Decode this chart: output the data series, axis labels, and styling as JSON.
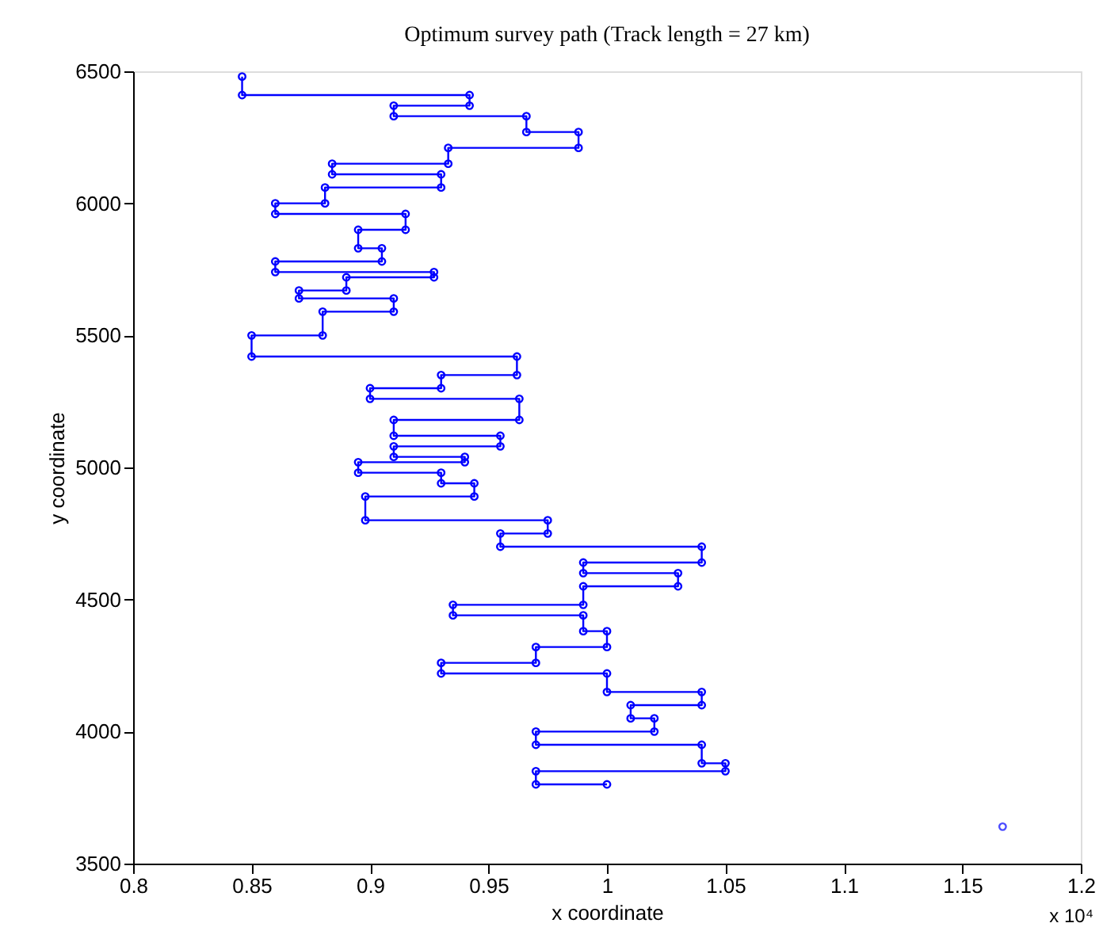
{
  "chart_data": {
    "type": "line",
    "title": "Optimum survey path (Track length = 27 km)",
    "xlabel": "x coordinate",
    "ylabel": "y coordinate",
    "annotations": [
      "x 10⁴"
    ],
    "xlim": [
      0.8,
      1.2
    ],
    "xticks": [
      0.8,
      0.85,
      0.9,
      0.95,
      1,
      1.05,
      1.1,
      1.15,
      1.2
    ],
    "ylim": [
      3500,
      6500
    ],
    "yticks": [
      3500,
      4000,
      4500,
      5000,
      5500,
      6000,
      6500
    ],
    "grid": false,
    "marker": "circle",
    "line_style": "solid",
    "series": [
      {
        "color": "#0000ff",
        "x": [
          0.846,
          0.846,
          0.942,
          0.942,
          0.91,
          0.91,
          0.966,
          0.966,
          0.988,
          0.988,
          0.933,
          0.933,
          0.884,
          0.884,
          0.93,
          0.93,
          0.881,
          0.881,
          0.86,
          0.86,
          0.915,
          0.915,
          0.895,
          0.895,
          0.905,
          0.905,
          0.86,
          0.86,
          0.927,
          0.927,
          0.89,
          0.89,
          0.87,
          0.87,
          0.91,
          0.91,
          0.88,
          0.88,
          0.85,
          0.85,
          0.962,
          0.962,
          0.93,
          0.93,
          0.9,
          0.9,
          0.963,
          0.963,
          0.91,
          0.91,
          0.955,
          0.955,
          0.91,
          0.91,
          0.94,
          0.94,
          0.895,
          0.895,
          0.93,
          0.93,
          0.944,
          0.944,
          0.898,
          0.898,
          0.975,
          0.975,
          0.955,
          0.955,
          1.04,
          1.04,
          0.99,
          0.99,
          1.03,
          1.03,
          0.99,
          0.99,
          0.935,
          0.935,
          0.99,
          0.99,
          1.0,
          1.0,
          0.97,
          0.97,
          0.93,
          0.93,
          1.0,
          1.0,
          1.04,
          1.04,
          1.01,
          1.01,
          1.02,
          1.02,
          0.97,
          0.97,
          1.04,
          1.04,
          1.05,
          1.05,
          0.97,
          0.97,
          1.0
        ],
        "values": [
          6480,
          6410,
          6410,
          6370,
          6370,
          6330,
          6330,
          6270,
          6270,
          6210,
          6210,
          6150,
          6150,
          6110,
          6110,
          6060,
          6060,
          6000,
          6000,
          5960,
          5960,
          5900,
          5900,
          5830,
          5830,
          5780,
          5780,
          5740,
          5740,
          5720,
          5720,
          5670,
          5670,
          5640,
          5640,
          5590,
          5590,
          5500,
          5500,
          5420,
          5420,
          5350,
          5350,
          5300,
          5300,
          5260,
          5260,
          5180,
          5180,
          5120,
          5120,
          5080,
          5080,
          5040,
          5040,
          5020,
          5020,
          4980,
          4980,
          4940,
          4940,
          4890,
          4890,
          4800,
          4800,
          4750,
          4750,
          4700,
          4700,
          4640,
          4640,
          4600,
          4600,
          4550,
          4550,
          4480,
          4480,
          4440,
          4440,
          4380,
          4380,
          4320,
          4320,
          4260,
          4260,
          4220,
          4220,
          4150,
          4150,
          4100,
          4100,
          4050,
          4050,
          4000,
          4000,
          3950,
          3950,
          3880,
          3880,
          3850,
          3850,
          3800,
          3800
        ]
      },
      {
        "type": "scatter",
        "color": "#0000ff",
        "x": [
          1.167
        ],
        "values": [
          3640
        ]
      }
    ]
  }
}
